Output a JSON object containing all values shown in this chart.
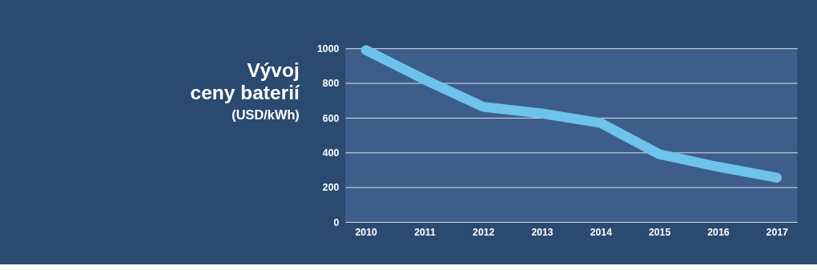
{
  "chart_data": {
    "type": "line",
    "title": "Vývoj ceny baterií",
    "ylabel": "(USD/kWh)",
    "categories": [
      "2010",
      "2011",
      "2012",
      "2013",
      "2014",
      "2015",
      "2016",
      "2017"
    ],
    "series": [
      {
        "color": "#6ec3ea",
        "values": [
          990,
          820,
          663,
          625,
          570,
          390,
          318,
          255
        ]
      }
    ],
    "ylim": [
      0,
      1000
    ],
    "yticks": [
      0,
      200,
      400,
      600,
      800,
      1000
    ],
    "grid": "y",
    "marker": "none",
    "line_style": "solid"
  }
}
